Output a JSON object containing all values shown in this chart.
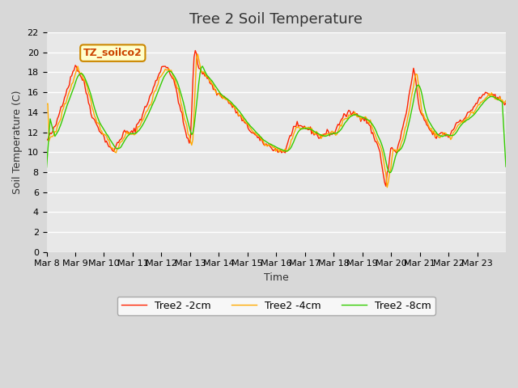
{
  "title": "Tree 2 Soil Temperature",
  "xlabel": "Time",
  "ylabel": "Soil Temperature (C)",
  "legend_label": "TZ_soilco2",
  "series_labels": [
    "Tree2 -2cm",
    "Tree2 -4cm",
    "Tree2 -8cm"
  ],
  "series_colors": [
    "#ff2200",
    "#ffaa00",
    "#33cc00"
  ],
  "ylim": [
    0,
    22
  ],
  "yticks": [
    0,
    2,
    4,
    6,
    8,
    10,
    12,
    14,
    16,
    18,
    20,
    22
  ],
  "x_tick_labels": [
    "Mar 8",
    "Mar 9",
    "Mar 10",
    "Mar 11",
    "Mar 12",
    "Mar 13",
    "Mar 14",
    "Mar 15",
    "Mar 16",
    "Mar 17",
    "Mar 18",
    "Mar 19",
    "Mar 20",
    "Mar 21",
    "Mar 22",
    "Mar 23"
  ],
  "background_color": "#e8e8e8",
  "title_fontsize": 13,
  "label_fontsize": 9,
  "tick_fontsize": 8
}
